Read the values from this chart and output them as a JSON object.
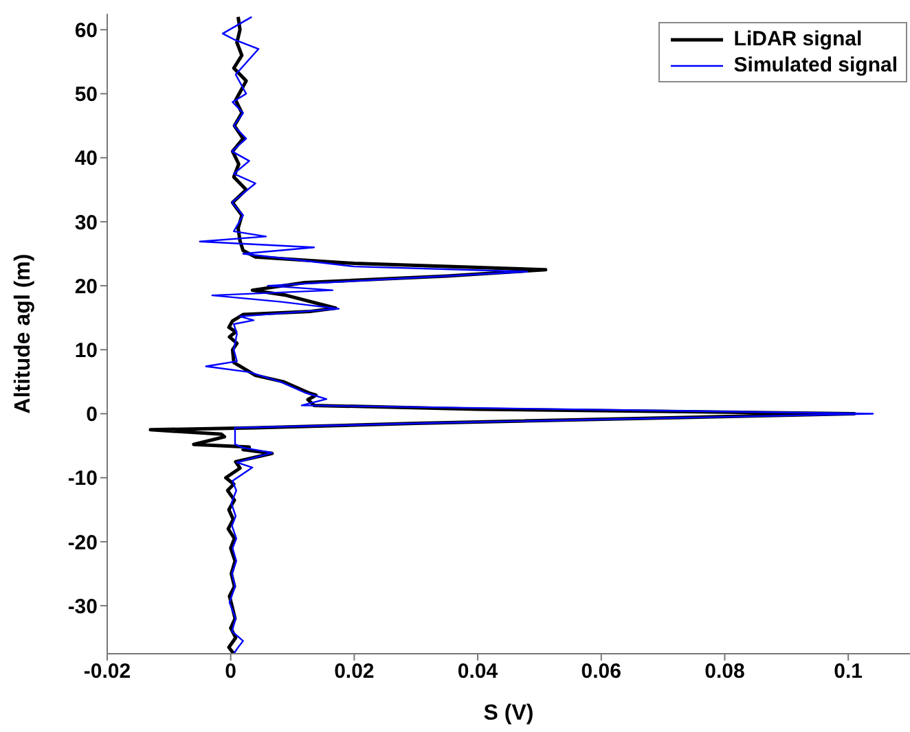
{
  "chart_data": {
    "type": "line",
    "xlabel": "S (V)",
    "ylabel": "Altitude agl (m)",
    "xlim": [
      -0.02,
      0.11
    ],
    "xticks": [
      -0.02,
      0,
      0.02,
      0.04,
      0.06,
      0.08,
      0.1
    ],
    "ylim": [
      -37.5,
      62.5
    ],
    "yticks": [
      -30,
      -20,
      -10,
      0,
      10,
      20,
      30,
      40,
      50,
      60
    ],
    "grid": false,
    "legend": "top right",
    "marker": "none",
    "line_style": "solid",
    "series": [
      {
        "name": "LiDAR signal",
        "color": "#000000",
        "x": [
          0.0005,
          -0.0003,
          0.0008,
          0,
          0.0007,
          0.0002,
          -0.0002,
          0.0006,
          0.0001,
          0.0007,
          0,
          0.0006,
          -0.0004,
          0.0004,
          -0.0003,
          0.0006,
          -0.0005,
          0.0005,
          -0.0008,
          0.0015,
          0.0008,
          0.0067,
          0.002,
          0.003,
          -0.006,
          -0.001,
          -0.0015,
          -0.013,
          0.004,
          0.03,
          0.101,
          0.04,
          0.0135,
          0.0125,
          0.0138,
          0.0128,
          0.0085,
          0.004,
          0.0005,
          0.0003,
          0.001,
          -0.0002,
          0.0008,
          -0.0003,
          0.0003,
          0.002,
          0.013,
          0.017,
          0.009,
          0.0035,
          0.012,
          0.035,
          0.051,
          0.02,
          0.004,
          0.002,
          0.0015,
          0.0012,
          0.0018,
          0.0003,
          0.0025,
          0.0005,
          0.0013,
          0.0003,
          0.002,
          0.0006,
          0.0018,
          0.0008,
          0.0025,
          0.0005,
          0.0018,
          0.001,
          0.0015,
          0.0012
        ],
        "values": [
          -37.5,
          -36.5,
          -35,
          -33.5,
          -32,
          -30,
          -28.5,
          -27,
          -25,
          -23,
          -21,
          -19.5,
          -18,
          -16.5,
          -15,
          -13.5,
          -12,
          -11,
          -10,
          -8.5,
          -7.5,
          -6.2,
          -5.6,
          -5.2,
          -4.8,
          -3.6,
          -3.2,
          -2.5,
          -2.2,
          -1.5,
          0,
          0.7,
          1.3,
          2.2,
          2.9,
          3.2,
          5,
          6,
          8,
          10,
          11,
          12,
          12.8,
          13.5,
          14.5,
          15.5,
          16,
          16.5,
          18.5,
          19.3,
          20.5,
          21.5,
          22.5,
          23.5,
          24.5,
          25.5,
          27,
          29,
          31,
          33,
          35,
          37,
          39,
          41,
          43,
          45,
          47,
          49,
          52,
          54,
          56,
          58,
          60,
          62
        ]
      },
      {
        "name": "Simulated signal",
        "color": "#0000ff",
        "x": [
          0.0005,
          0.0012,
          0.002,
          0.0002,
          0.0008,
          -0.0002,
          0.0007,
          0.0002,
          0.0009,
          0.0003,
          0.0009,
          0.0002,
          0.0008,
          0.0001,
          0.0009,
          0.0003,
          0.0035,
          0.001,
          0.0067,
          0.002,
          0.0007,
          0.0007,
          0.035,
          0.104,
          0.04,
          0.0115,
          0.0155,
          0.012,
          0.008,
          0.003,
          -0.004,
          0.001,
          0.0005,
          0.001,
          0.0005,
          0.0037,
          0.0015,
          0.0175,
          0.008,
          -0.003,
          0.0165,
          0.006,
          0.025,
          0.048,
          0.02,
          0.013,
          0.002,
          0.0135,
          -0.005,
          0.0057,
          0.0005,
          0.002,
          0.0002,
          0.004,
          0.0005,
          0.003,
          0.0002,
          0.0025,
          0.0005,
          0.002,
          0.0003,
          0.0025,
          0.0008,
          0.0045,
          0.0005,
          -0.0013,
          0.0034
        ],
        "values": [
          -37.5,
          -36.5,
          -35.5,
          -34,
          -32,
          -29.5,
          -27,
          -25,
          -23,
          -21,
          -19.5,
          -17.5,
          -16,
          -14,
          -12,
          -10.5,
          -8.4,
          -7.6,
          -6.1,
          -5.3,
          -4.8,
          -2.2,
          -1.4,
          0,
          0.9,
          1.3,
          2.3,
          3.3,
          5,
          6.5,
          7.4,
          8.2,
          10,
          12.5,
          14,
          14.6,
          15.2,
          16.4,
          17.5,
          18.5,
          19.3,
          20,
          21,
          22.2,
          23,
          23.8,
          25,
          26,
          26.9,
          27.7,
          28.5,
          31,
          33,
          36,
          37.5,
          39.5,
          41,
          43,
          45,
          47,
          48.7,
          50,
          53,
          57,
          58.5,
          59.4,
          62
        ]
      }
    ]
  }
}
